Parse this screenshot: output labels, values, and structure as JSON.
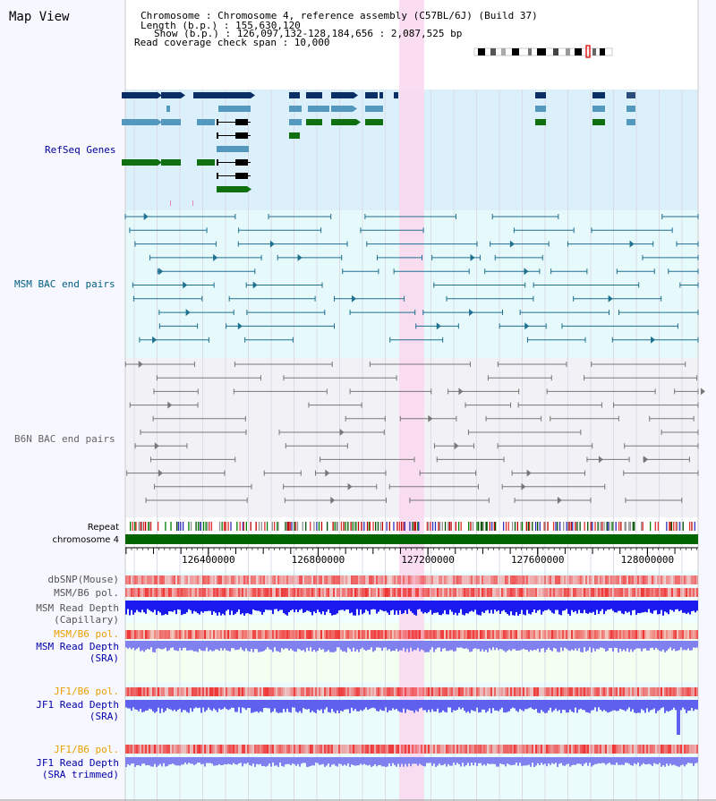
{
  "title": "Map View",
  "info": {
    "lines": [
      "Chromosome     : Chromosome 4, reference assembly (C57BL/6J) (Build 37)",
      "Length (b.p.) : 155,630,120",
      "Show (b.p.) : 126,097,132-128,184,656 : 2,087,525 bp",
      "Read coverage check span : 10,000"
    ]
  },
  "tracks": {
    "refseq": {
      "label": "RefSeq Genes",
      "color": "#000099",
      "bg": "#dbf0fa"
    },
    "msm_bac": {
      "label": "MSM BAC end pairs",
      "color": "#005f80",
      "bg": "#e6fafb"
    },
    "b6n_bac": {
      "label": "B6N BAC end pairs",
      "color": "#666666",
      "bg": "#f2f2f6"
    }
  },
  "repeat_label": "Repeat",
  "chromosome_label": "chromosome 4",
  "axis": {
    "ticks": [
      "126400000",
      "126800000",
      "127200000",
      "127600000",
      "128000000"
    ],
    "tick_values": [
      126400000,
      126800000,
      127200000,
      127600000,
      128000000
    ],
    "start": 126097132,
    "end": 128184656
  },
  "lower_tracks": [
    {
      "label": "dbSNP(Mouse)",
      "color": "#555555"
    },
    {
      "label": "MSM/B6 pol.",
      "color": "#555555"
    },
    {
      "label": "MSM Read Depth",
      "label2": "(Capillary)",
      "color": "#555555"
    },
    {
      "label": "MSM/B6 pol.",
      "color": "#e8a000"
    },
    {
      "label": "MSM Read Depth",
      "label2": "(SRA)",
      "color": "#0000aa"
    },
    {
      "label": "JF1/B6 pol.",
      "color": "#e8a000"
    },
    {
      "label": "JF1 Read Depth",
      "label2": "(SRA)",
      "color": "#0000aa"
    },
    {
      "label": "JF1/B6 pol.",
      "color": "#e8a000"
    },
    {
      "label": "JF1 Read Depth",
      "label2": "(SRA trimmed)",
      "color": "#0000aa"
    }
  ],
  "colors": {
    "highlight": "#f9d9f0",
    "gene_dark": "#0a2e66",
    "gene_mid": "#5499bd",
    "gene_green": "#107010",
    "bac_msm": "#1f6f8f",
    "bac_b6n": "#777777",
    "chromosome_bar": "#006400",
    "depth_dark": "#1a1aee",
    "depth_light": "#8080ee",
    "snp": "#ee5555"
  },
  "icons": {
    "ideogram": "chromosome-ideogram-icon"
  }
}
